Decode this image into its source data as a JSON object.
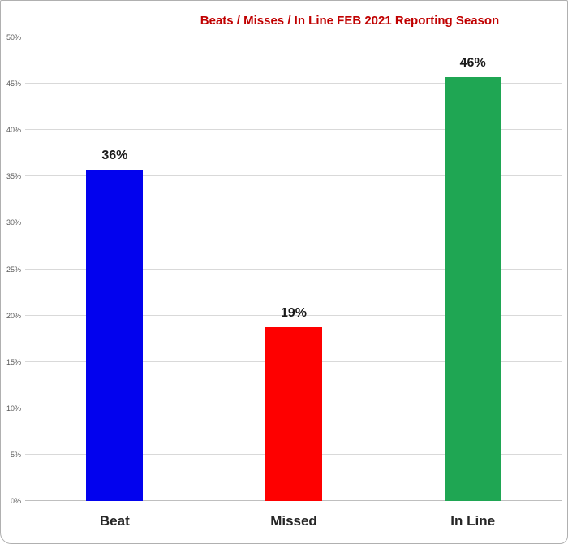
{
  "chart_data": {
    "type": "bar",
    "title": "Beats / Misses / In Line  FEB 2021 Reporting Season",
    "title_color": "#c00000",
    "categories": [
      "Beat",
      "Missed",
      "In Line"
    ],
    "values": [
      35.7,
      18.7,
      45.7
    ],
    "data_labels": [
      "36%",
      "19%",
      "46%"
    ],
    "bar_colors": [
      "#0202ee",
      "#fe0000",
      "#1fa653"
    ],
    "xlabel": "",
    "ylabel": "",
    "ylim": [
      0,
      50
    ],
    "ytick_step": 5,
    "ytick_labels": [
      "0%",
      "5%",
      "10%",
      "15%",
      "20%",
      "25%",
      "30%",
      "35%",
      "40%",
      "45%",
      "50%"
    ],
    "grid": "horizontal",
    "gridline_color": "#d9d9d9",
    "axis_line_color": "#bfbfbf",
    "tick_label_color": "#595959",
    "legend": "none"
  }
}
